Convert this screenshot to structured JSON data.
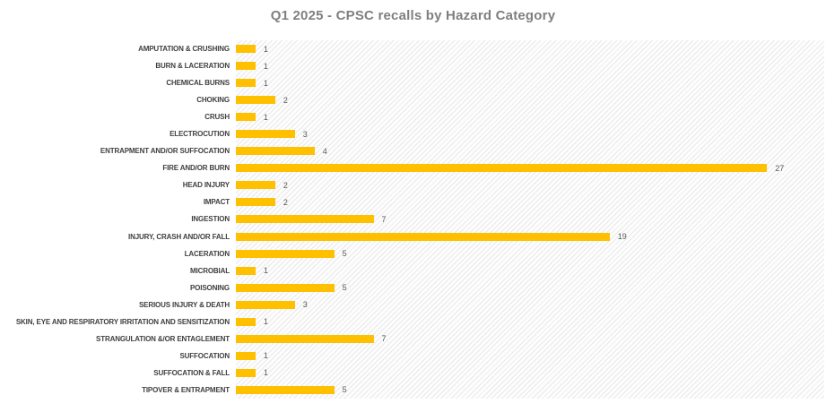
{
  "chart_data": {
    "type": "bar",
    "orientation": "horizontal",
    "title": "Q1 2025 - CPSC recalls by Hazard Category",
    "categories": [
      "AMPUTATION & CRUSHING",
      "BURN & LACERATION",
      "CHEMICAL BURNS",
      "CHOKING",
      "CRUSH",
      "ELECTROCUTION",
      "ENTRAPMENT AND/OR SUFFOCATION",
      "FIRE AND/OR BURN",
      "HEAD INJURY",
      "IMPACT",
      "INGESTION",
      "INJURY, CRASH AND/OR FALL",
      "LACERATION",
      "MICROBIAL",
      "POISONING",
      "SERIOUS INJURY & DEATH",
      "SKIN, EYE AND RESPIRATORY IRRITATION AND SENSITIZATION",
      "STRANGULATION &/OR ENTAGLEMENT",
      "SUFFOCATION",
      "SUFFOCATION & FALL",
      "TIPOVER & ENTRAPMENT"
    ],
    "values": [
      1,
      1,
      1,
      2,
      1,
      3,
      4,
      27,
      2,
      2,
      7,
      19,
      5,
      1,
      5,
      3,
      1,
      7,
      1,
      1,
      5
    ],
    "data_labels": [
      "1",
      "1",
      "1",
      "2",
      "1",
      "3",
      "4",
      "27",
      "2",
      "2",
      "7",
      "19",
      "5",
      "1",
      "5",
      "3",
      "1",
      "7",
      "1",
      "1",
      "5"
    ],
    "xlabel": "",
    "ylabel": "",
    "xlim": [
      0,
      30
    ],
    "grid": false,
    "legend": false,
    "plot_background": "diagonal-hatch-pattern"
  },
  "colors": {
    "bar_color": "#ffc000",
    "title_color": "#7f7f7f",
    "category_label_color": "#404040",
    "value_label_color": "#595959"
  }
}
